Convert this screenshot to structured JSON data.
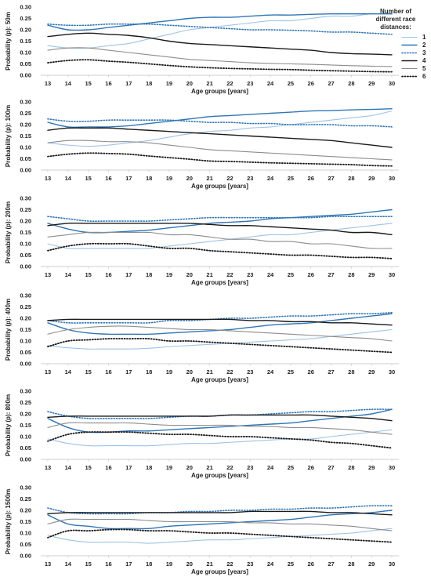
{
  "legend": {
    "title_lines": [
      "Number of",
      "different race",
      "distances:"
    ],
    "items": [
      {
        "label": "1",
        "color": "#9dc3e6",
        "dash": "solid",
        "width": 1.1
      },
      {
        "label": "2",
        "color": "#2e75b6",
        "dash": "solid",
        "width": 1.4
      },
      {
        "label": "3",
        "color": "#2e75b6",
        "dash": "dotted",
        "width": 1.6
      },
      {
        "label": "4",
        "color": "#1a1a1a",
        "dash": "solid",
        "width": 1.4
      },
      {
        "label": "5",
        "color": "#8c8c8c",
        "dash": "solid",
        "width": 1.1
      },
      {
        "label": "6",
        "color": "#1a1a1a",
        "dash": "dotted",
        "width": 1.8
      }
    ]
  },
  "chart_data": [
    {
      "type": "line",
      "ylabel": "Probability (p): 50m",
      "xlabel": "Age groups [years]",
      "categories": [
        "13",
        "14",
        "15",
        "16",
        "17",
        "18",
        "19",
        "20",
        "21",
        "22",
        "23",
        "24",
        "25",
        "26",
        "27",
        "28",
        "29",
        "30"
      ],
      "ylim": [
        0,
        0.3
      ],
      "yticks": [
        "0.00",
        "0.05",
        "0.10",
        "0.15",
        "0.20",
        "0.25",
        "0.30"
      ],
      "series": [
        {
          "name": "1",
          "values": [
            0.13,
            0.12,
            0.12,
            0.13,
            0.14,
            0.16,
            0.18,
            0.2,
            0.21,
            0.22,
            0.23,
            0.24,
            0.24,
            0.25,
            0.26,
            0.26,
            0.27,
            0.27
          ]
        },
        {
          "name": "2",
          "values": [
            0.22,
            0.2,
            0.2,
            0.21,
            0.22,
            0.23,
            0.24,
            0.25,
            0.255,
            0.255,
            0.26,
            0.265,
            0.265,
            0.268,
            0.27,
            0.27,
            0.27,
            0.27
          ]
        },
        {
          "name": "3",
          "values": [
            0.225,
            0.22,
            0.22,
            0.225,
            0.225,
            0.225,
            0.22,
            0.215,
            0.21,
            0.205,
            0.2,
            0.2,
            0.198,
            0.195,
            0.19,
            0.19,
            0.185,
            0.18
          ]
        },
        {
          "name": "4",
          "values": [
            0.17,
            0.18,
            0.185,
            0.18,
            0.175,
            0.165,
            0.15,
            0.14,
            0.135,
            0.13,
            0.125,
            0.12,
            0.115,
            0.11,
            0.1,
            0.095,
            0.093,
            0.09
          ]
        },
        {
          "name": "5",
          "values": [
            0.11,
            0.12,
            0.12,
            0.11,
            0.1,
            0.09,
            0.08,
            0.07,
            0.065,
            0.06,
            0.055,
            0.052,
            0.05,
            0.048,
            0.045,
            0.042,
            0.04,
            0.038
          ]
        },
        {
          "name": "6",
          "values": [
            0.055,
            0.065,
            0.068,
            0.062,
            0.057,
            0.05,
            0.043,
            0.037,
            0.033,
            0.03,
            0.028,
            0.026,
            0.025,
            0.022,
            0.02,
            0.018,
            0.016,
            0.015
          ]
        }
      ]
    },
    {
      "type": "line",
      "ylabel": "Probability (p): 100m",
      "xlabel": "Age groups [years]",
      "categories": [
        "13",
        "14",
        "15",
        "16",
        "17",
        "18",
        "19",
        "20",
        "21",
        "22",
        "23",
        "24",
        "25",
        "26",
        "27",
        "28",
        "29",
        "30"
      ],
      "ylim": [
        0,
        0.3
      ],
      "yticks": [
        "0.00",
        "0.05",
        "0.10",
        "0.15",
        "0.20",
        "0.25",
        "0.30"
      ],
      "series": [
        {
          "name": "1",
          "values": [
            0.12,
            0.11,
            0.105,
            0.11,
            0.12,
            0.13,
            0.145,
            0.16,
            0.17,
            0.175,
            0.185,
            0.19,
            0.2,
            0.21,
            0.22,
            0.23,
            0.24,
            0.26
          ]
        },
        {
          "name": "2",
          "values": [
            0.21,
            0.19,
            0.19,
            0.19,
            0.195,
            0.205,
            0.215,
            0.225,
            0.235,
            0.24,
            0.245,
            0.25,
            0.255,
            0.26,
            0.262,
            0.265,
            0.267,
            0.27
          ]
        },
        {
          "name": "3",
          "values": [
            0.225,
            0.215,
            0.215,
            0.22,
            0.22,
            0.22,
            0.22,
            0.215,
            0.21,
            0.21,
            0.205,
            0.205,
            0.2,
            0.2,
            0.2,
            0.195,
            0.195,
            0.19
          ]
        },
        {
          "name": "4",
          "values": [
            0.175,
            0.185,
            0.185,
            0.185,
            0.18,
            0.175,
            0.17,
            0.165,
            0.16,
            0.155,
            0.15,
            0.145,
            0.14,
            0.135,
            0.13,
            0.12,
            0.11,
            0.1
          ]
        },
        {
          "name": "5",
          "values": [
            0.12,
            0.13,
            0.13,
            0.125,
            0.125,
            0.12,
            0.11,
            0.1,
            0.09,
            0.085,
            0.08,
            0.075,
            0.07,
            0.065,
            0.06,
            0.055,
            0.05,
            0.045
          ]
        },
        {
          "name": "6",
          "values": [
            0.06,
            0.07,
            0.075,
            0.073,
            0.07,
            0.062,
            0.055,
            0.048,
            0.04,
            0.038,
            0.035,
            0.032,
            0.03,
            0.028,
            0.026,
            0.024,
            0.02,
            0.018
          ]
        }
      ]
    },
    {
      "type": "line",
      "ylabel": "Probability (p): 200m",
      "xlabel": "Age groups [years]",
      "categories": [
        "13",
        "14",
        "15",
        "16",
        "17",
        "18",
        "19",
        "20",
        "21",
        "22",
        "23",
        "24",
        "25",
        "26",
        "27",
        "28",
        "29",
        "30"
      ],
      "ylim": [
        0,
        0.3
      ],
      "yticks": [
        "0.00",
        "0.05",
        "0.10",
        "0.15",
        "0.20",
        "0.25",
        "0.30"
      ],
      "series": [
        {
          "name": "1",
          "values": [
            0.1,
            0.08,
            0.08,
            0.08,
            0.08,
            0.08,
            0.09,
            0.1,
            0.11,
            0.12,
            0.13,
            0.14,
            0.14,
            0.15,
            0.16,
            0.17,
            0.18,
            0.19
          ]
        },
        {
          "name": "2",
          "values": [
            0.19,
            0.165,
            0.15,
            0.15,
            0.155,
            0.16,
            0.17,
            0.18,
            0.19,
            0.195,
            0.2,
            0.21,
            0.215,
            0.22,
            0.225,
            0.23,
            0.24,
            0.25
          ]
        },
        {
          "name": "3",
          "values": [
            0.22,
            0.21,
            0.2,
            0.2,
            0.2,
            0.2,
            0.205,
            0.21,
            0.215,
            0.215,
            0.215,
            0.215,
            0.215,
            0.215,
            0.22,
            0.22,
            0.22,
            0.22
          ]
        },
        {
          "name": "4",
          "values": [
            0.18,
            0.19,
            0.19,
            0.19,
            0.19,
            0.19,
            0.19,
            0.19,
            0.185,
            0.18,
            0.18,
            0.175,
            0.17,
            0.165,
            0.16,
            0.15,
            0.15,
            0.14
          ]
        },
        {
          "name": "5",
          "values": [
            0.13,
            0.14,
            0.15,
            0.15,
            0.15,
            0.15,
            0.14,
            0.14,
            0.13,
            0.12,
            0.12,
            0.11,
            0.11,
            0.1,
            0.1,
            0.09,
            0.08,
            0.08
          ]
        },
        {
          "name": "6",
          "values": [
            0.07,
            0.09,
            0.1,
            0.1,
            0.1,
            0.09,
            0.08,
            0.08,
            0.07,
            0.065,
            0.06,
            0.055,
            0.05,
            0.05,
            0.045,
            0.04,
            0.04,
            0.035
          ]
        }
      ]
    },
    {
      "type": "line",
      "ylabel": "Probability (p): 400m",
      "xlabel": "Age groups [years]",
      "categories": [
        "13",
        "14",
        "15",
        "16",
        "17",
        "18",
        "19",
        "20",
        "21",
        "22",
        "23",
        "24",
        "25",
        "26",
        "27",
        "28",
        "29",
        "30"
      ],
      "ylim": [
        0,
        0.3
      ],
      "yticks": [
        "0.00",
        "0.05",
        "0.10",
        "0.15",
        "0.20",
        "0.25",
        "0.30"
      ],
      "series": [
        {
          "name": "1",
          "values": [
            0.08,
            0.07,
            0.065,
            0.065,
            0.065,
            0.068,
            0.075,
            0.08,
            0.085,
            0.09,
            0.095,
            0.1,
            0.105,
            0.11,
            0.12,
            0.13,
            0.14,
            0.15
          ]
        },
        {
          "name": "2",
          "values": [
            0.18,
            0.15,
            0.135,
            0.13,
            0.13,
            0.13,
            0.135,
            0.14,
            0.145,
            0.15,
            0.16,
            0.17,
            0.175,
            0.18,
            0.19,
            0.2,
            0.21,
            0.22
          ]
        },
        {
          "name": "3",
          "values": [
            0.19,
            0.18,
            0.18,
            0.18,
            0.18,
            0.18,
            0.19,
            0.19,
            0.195,
            0.2,
            0.2,
            0.205,
            0.21,
            0.21,
            0.215,
            0.22,
            0.22,
            0.225
          ]
        },
        {
          "name": "4",
          "values": [
            0.19,
            0.195,
            0.195,
            0.195,
            0.195,
            0.195,
            0.195,
            0.195,
            0.195,
            0.195,
            0.19,
            0.19,
            0.185,
            0.185,
            0.18,
            0.18,
            0.175,
            0.17
          ]
        },
        {
          "name": "5",
          "values": [
            0.13,
            0.15,
            0.16,
            0.165,
            0.165,
            0.16,
            0.155,
            0.15,
            0.15,
            0.145,
            0.14,
            0.135,
            0.13,
            0.125,
            0.12,
            0.115,
            0.11,
            0.1
          ]
        },
        {
          "name": "6",
          "values": [
            0.075,
            0.1,
            0.105,
            0.11,
            0.11,
            0.11,
            0.1,
            0.1,
            0.095,
            0.09,
            0.085,
            0.08,
            0.075,
            0.07,
            0.065,
            0.06,
            0.055,
            0.05
          ]
        }
      ]
    },
    {
      "type": "line",
      "ylabel": "Probability (p): 800m",
      "xlabel": "Age groups [years]",
      "categories": [
        "13",
        "14",
        "15",
        "16",
        "17",
        "18",
        "19",
        "20",
        "21",
        "22",
        "23",
        "24",
        "25",
        "26",
        "27",
        "28",
        "29",
        "30"
      ],
      "ylim": [
        0,
        0.3
      ],
      "yticks": [
        "0.00",
        "0.05",
        "0.10",
        "0.15",
        "0.20",
        "0.25",
        "0.30"
      ],
      "series": [
        {
          "name": "1",
          "values": [
            0.09,
            0.07,
            0.06,
            0.06,
            0.06,
            0.06,
            0.065,
            0.07,
            0.07,
            0.075,
            0.08,
            0.085,
            0.09,
            0.09,
            0.1,
            0.11,
            0.12,
            0.13
          ]
        },
        {
          "name": "2",
          "values": [
            0.18,
            0.14,
            0.12,
            0.12,
            0.125,
            0.125,
            0.13,
            0.135,
            0.14,
            0.145,
            0.15,
            0.155,
            0.16,
            0.17,
            0.18,
            0.19,
            0.2,
            0.22
          ]
        },
        {
          "name": "3",
          "values": [
            0.21,
            0.19,
            0.18,
            0.18,
            0.18,
            0.18,
            0.185,
            0.19,
            0.19,
            0.195,
            0.195,
            0.2,
            0.205,
            0.21,
            0.21,
            0.215,
            0.22,
            0.22
          ]
        },
        {
          "name": "4",
          "values": [
            0.185,
            0.19,
            0.19,
            0.19,
            0.19,
            0.19,
            0.19,
            0.19,
            0.19,
            0.195,
            0.195,
            0.195,
            0.195,
            0.195,
            0.19,
            0.185,
            0.18,
            0.17
          ]
        },
        {
          "name": "5",
          "values": [
            0.14,
            0.16,
            0.16,
            0.16,
            0.16,
            0.155,
            0.15,
            0.15,
            0.15,
            0.15,
            0.145,
            0.145,
            0.14,
            0.14,
            0.135,
            0.13,
            0.12,
            0.11
          ]
        },
        {
          "name": "6",
          "values": [
            0.08,
            0.11,
            0.12,
            0.12,
            0.12,
            0.115,
            0.11,
            0.11,
            0.105,
            0.1,
            0.1,
            0.095,
            0.09,
            0.085,
            0.075,
            0.07,
            0.06,
            0.05
          ]
        }
      ]
    },
    {
      "type": "line",
      "ylabel": "Probability (p): 1500m",
      "xlabel": "Age groups [years]",
      "categories": [
        "13",
        "14",
        "15",
        "16",
        "17",
        "18",
        "19",
        "20",
        "21",
        "22",
        "23",
        "24",
        "25",
        "26",
        "27",
        "28",
        "29",
        "30"
      ],
      "ylim": [
        0,
        0.3
      ],
      "yticks": [
        "0.00",
        "0.05",
        "0.10",
        "0.15",
        "0.20",
        "0.25",
        "0.30"
      ],
      "series": [
        {
          "name": "1",
          "values": [
            0.09,
            0.07,
            0.06,
            0.06,
            0.06,
            0.055,
            0.06,
            0.065,
            0.07,
            0.07,
            0.075,
            0.08,
            0.085,
            0.09,
            0.095,
            0.1,
            0.11,
            0.12
          ]
        },
        {
          "name": "2",
          "values": [
            0.18,
            0.14,
            0.13,
            0.12,
            0.12,
            0.12,
            0.13,
            0.135,
            0.14,
            0.145,
            0.15,
            0.155,
            0.16,
            0.17,
            0.18,
            0.185,
            0.19,
            0.2
          ]
        },
        {
          "name": "3",
          "values": [
            0.21,
            0.19,
            0.185,
            0.185,
            0.185,
            0.19,
            0.19,
            0.195,
            0.195,
            0.2,
            0.2,
            0.205,
            0.205,
            0.21,
            0.21,
            0.215,
            0.22,
            0.22
          ]
        },
        {
          "name": "4",
          "values": [
            0.185,
            0.19,
            0.19,
            0.19,
            0.19,
            0.19,
            0.19,
            0.19,
            0.19,
            0.19,
            0.195,
            0.195,
            0.195,
            0.195,
            0.19,
            0.19,
            0.185,
            0.18
          ]
        },
        {
          "name": "5",
          "values": [
            0.14,
            0.16,
            0.16,
            0.16,
            0.16,
            0.155,
            0.15,
            0.15,
            0.15,
            0.15,
            0.145,
            0.145,
            0.14,
            0.14,
            0.135,
            0.13,
            0.12,
            0.11
          ]
        },
        {
          "name": "6",
          "values": [
            0.08,
            0.11,
            0.11,
            0.115,
            0.115,
            0.11,
            0.11,
            0.105,
            0.1,
            0.1,
            0.095,
            0.09,
            0.085,
            0.08,
            0.075,
            0.07,
            0.065,
            0.06
          ]
        }
      ]
    }
  ]
}
